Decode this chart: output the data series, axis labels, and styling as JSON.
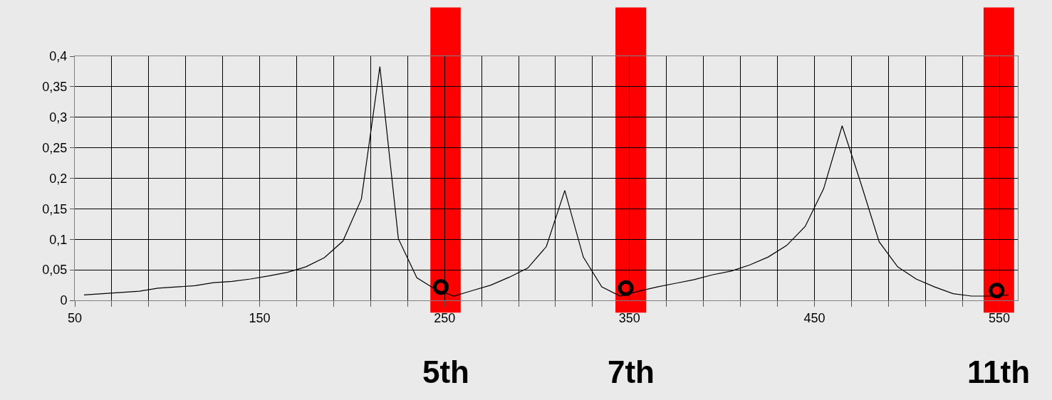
{
  "chart_data": {
    "type": "line",
    "x": [
      55,
      65,
      75,
      85,
      95,
      105,
      115,
      125,
      135,
      145,
      155,
      165,
      175,
      185,
      195,
      205,
      215,
      225,
      235,
      245,
      255,
      265,
      275,
      285,
      295,
      305,
      315,
      325,
      335,
      345,
      355,
      365,
      375,
      385,
      395,
      405,
      415,
      425,
      435,
      445,
      455,
      465,
      475,
      485,
      495,
      505,
      515,
      525,
      535,
      545,
      555
    ],
    "series": [
      {
        "color": "#000000",
        "values": [
          0.009,
          0.011,
          0.013,
          0.015,
          0.02,
          0.022,
          0.024,
          0.029,
          0.031,
          0.035,
          0.04,
          0.046,
          0.055,
          0.07,
          0.097,
          0.166,
          0.383,
          0.101,
          0.037,
          0.018,
          0.007,
          0.016,
          0.025,
          0.038,
          0.053,
          0.088,
          0.18,
          0.071,
          0.022,
          0.007,
          0.015,
          0.022,
          0.028,
          0.034,
          0.042,
          0.048,
          0.058,
          0.071,
          0.09,
          0.121,
          0.183,
          0.286,
          0.193,
          0.096,
          0.055,
          0.035,
          0.022,
          0.011,
          0.007,
          0.007,
          0.009
        ]
      },
      {
        "type": "scatter",
        "color": "#000000",
        "marker": "circle",
        "x": [
          248,
          348,
          548.6
        ],
        "values": [
          0.022,
          0.02,
          0.016
        ]
      }
    ],
    "xlim": [
      50,
      560
    ],
    "xticks": [
      50,
      {
        "value": 70,
        "label": null
      },
      {
        "value": 90,
        "label": null
      },
      {
        "value": 110,
        "label": null
      },
      {
        "value": 130,
        "label": null
      },
      150,
      {
        "value": 170,
        "label": null
      },
      {
        "value": 190,
        "label": null
      },
      {
        "value": 210,
        "label": null
      },
      {
        "value": 230,
        "label": null
      },
      250,
      {
        "value": 270,
        "label": null
      },
      {
        "value": 290,
        "label": null
      },
      {
        "value": 310,
        "label": null
      },
      {
        "value": 330,
        "label": null
      },
      350,
      {
        "value": 370,
        "label": null
      },
      {
        "value": 390,
        "label": null
      },
      {
        "value": 410,
        "label": null
      },
      {
        "value": 430,
        "label": null
      },
      450,
      {
        "value": 470,
        "label": null
      },
      {
        "value": 490,
        "label": null
      },
      {
        "value": 510,
        "label": null
      },
      {
        "value": 530,
        "label": null
      },
      550
    ],
    "ylim": [
      0,
      0.4
    ],
    "yticks": [
      0,
      {
        "value": 0.05,
        "label": "0,05"
      },
      {
        "value": 0.1,
        "label": "0,1"
      },
      {
        "value": 0.15,
        "label": "0,15"
      },
      {
        "value": 0.2,
        "label": "0,2"
      },
      {
        "value": 0.25,
        "label": "0,25"
      },
      {
        "value": 0.3,
        "label": "0,3"
      },
      {
        "value": 0.35,
        "label": "0,35"
      },
      {
        "value": 0.4,
        "label": "0,4"
      }
    ],
    "bands": [
      {
        "axis": "x",
        "from": 242.3,
        "to": 258.7,
        "label": "5th",
        "color": "#ff0000"
      },
      {
        "axis": "x",
        "from": 342.4,
        "to": 359,
        "label": "7th",
        "color": "#ff0000"
      },
      {
        "axis": "x",
        "from": 541.5,
        "to": 558,
        "label": "11th",
        "color": "#ff0000"
      }
    ],
    "grid": true,
    "marker": "none",
    "line_style": "solid"
  }
}
